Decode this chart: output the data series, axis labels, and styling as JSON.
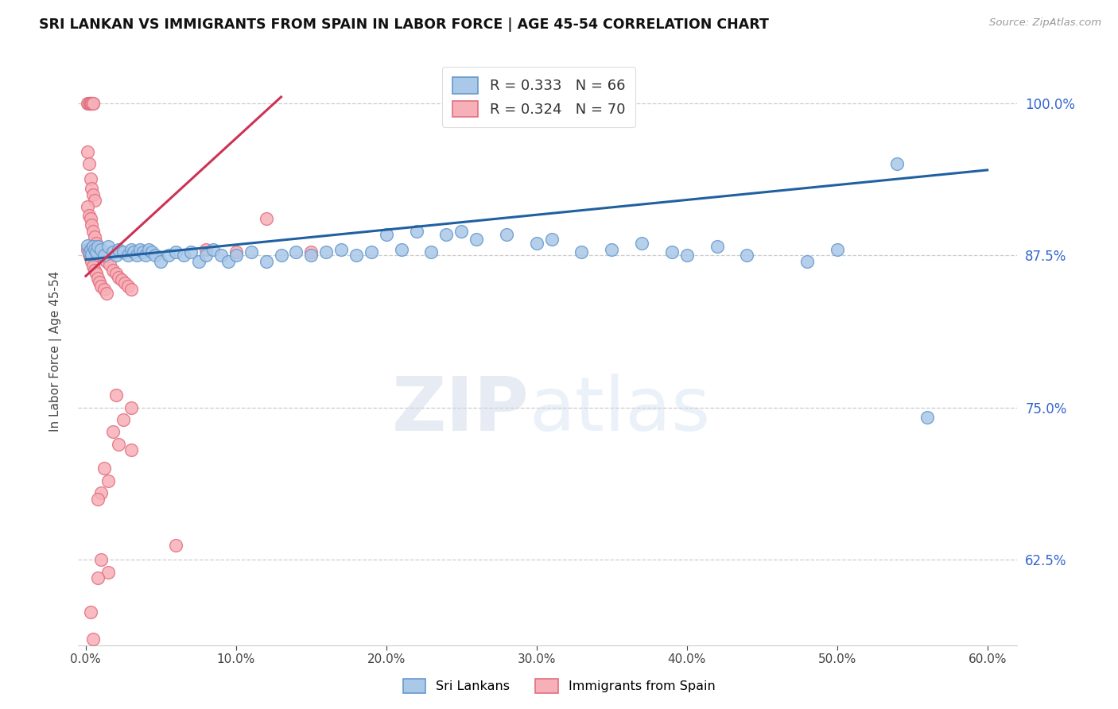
{
  "title": "SRI LANKAN VS IMMIGRANTS FROM SPAIN IN LABOR FORCE | AGE 45-54 CORRELATION CHART",
  "source": "Source: ZipAtlas.com",
  "ylabel_label": "In Labor Force | Age 45-54",
  "xlim": [
    -0.005,
    0.62
  ],
  "ylim": [
    0.555,
    1.038
  ],
  "ytick_vals": [
    0.625,
    0.75,
    0.875,
    1.0
  ],
  "ytick_labels": [
    "62.5%",
    "75.0%",
    "87.5%",
    "100.0%"
  ],
  "xtick_vals": [
    0.0,
    0.1,
    0.2,
    0.3,
    0.4,
    0.5,
    0.6
  ],
  "xtick_labels": [
    "0.0%",
    "10.0%",
    "20.0%",
    "30.0%",
    "40.0%",
    "50.0%",
    "60.0%"
  ],
  "blue_face": "#aac8e8",
  "blue_edge": "#6699cc",
  "pink_face": "#f8b0b8",
  "pink_edge": "#e07080",
  "trend_blue_color": "#2060a0",
  "trend_pink_color": "#cc3355",
  "blue_points": [
    [
      0.001,
      0.883
    ],
    [
      0.002,
      0.878
    ],
    [
      0.003,
      0.88
    ],
    [
      0.004,
      0.876
    ],
    [
      0.005,
      0.882
    ],
    [
      0.006,
      0.88
    ],
    [
      0.007,
      0.878
    ],
    [
      0.008,
      0.882
    ],
    [
      0.01,
      0.88
    ],
    [
      0.012,
      0.875
    ],
    [
      0.015,
      0.882
    ],
    [
      0.018,
      0.878
    ],
    [
      0.02,
      0.875
    ],
    [
      0.022,
      0.88
    ],
    [
      0.025,
      0.878
    ],
    [
      0.028,
      0.875
    ],
    [
      0.03,
      0.88
    ],
    [
      0.032,
      0.878
    ],
    [
      0.034,
      0.875
    ],
    [
      0.036,
      0.88
    ],
    [
      0.038,
      0.878
    ],
    [
      0.04,
      0.875
    ],
    [
      0.042,
      0.88
    ],
    [
      0.044,
      0.878
    ],
    [
      0.046,
      0.875
    ],
    [
      0.05,
      0.87
    ],
    [
      0.055,
      0.875
    ],
    [
      0.06,
      0.878
    ],
    [
      0.065,
      0.875
    ],
    [
      0.07,
      0.878
    ],
    [
      0.075,
      0.87
    ],
    [
      0.08,
      0.875
    ],
    [
      0.085,
      0.88
    ],
    [
      0.09,
      0.875
    ],
    [
      0.095,
      0.87
    ],
    [
      0.1,
      0.875
    ],
    [
      0.11,
      0.878
    ],
    [
      0.12,
      0.87
    ],
    [
      0.13,
      0.875
    ],
    [
      0.14,
      0.878
    ],
    [
      0.15,
      0.875
    ],
    [
      0.16,
      0.878
    ],
    [
      0.17,
      0.88
    ],
    [
      0.18,
      0.875
    ],
    [
      0.19,
      0.878
    ],
    [
      0.2,
      0.892
    ],
    [
      0.21,
      0.88
    ],
    [
      0.22,
      0.895
    ],
    [
      0.23,
      0.878
    ],
    [
      0.24,
      0.892
    ],
    [
      0.25,
      0.895
    ],
    [
      0.26,
      0.888
    ],
    [
      0.28,
      0.892
    ],
    [
      0.3,
      0.885
    ],
    [
      0.31,
      0.888
    ],
    [
      0.33,
      0.878
    ],
    [
      0.35,
      0.88
    ],
    [
      0.37,
      0.885
    ],
    [
      0.39,
      0.878
    ],
    [
      0.4,
      0.875
    ],
    [
      0.42,
      0.882
    ],
    [
      0.44,
      0.875
    ],
    [
      0.48,
      0.87
    ],
    [
      0.5,
      0.88
    ],
    [
      0.54,
      0.95
    ],
    [
      0.56,
      0.742
    ]
  ],
  "pink_points": [
    [
      0.001,
      1.0
    ],
    [
      0.002,
      1.0
    ],
    [
      0.002,
      1.0
    ],
    [
      0.003,
      1.0
    ],
    [
      0.003,
      1.0
    ],
    [
      0.004,
      1.0
    ],
    [
      0.004,
      1.0
    ],
    [
      0.005,
      1.0
    ],
    [
      0.005,
      1.0
    ],
    [
      0.001,
      0.96
    ],
    [
      0.002,
      0.95
    ],
    [
      0.003,
      0.938
    ],
    [
      0.004,
      0.93
    ],
    [
      0.005,
      0.925
    ],
    [
      0.006,
      0.92
    ],
    [
      0.001,
      0.915
    ],
    [
      0.002,
      0.908
    ],
    [
      0.003,
      0.905
    ],
    [
      0.004,
      0.9
    ],
    [
      0.005,
      0.895
    ],
    [
      0.006,
      0.89
    ],
    [
      0.007,
      0.885
    ],
    [
      0.008,
      0.882
    ],
    [
      0.009,
      0.878
    ],
    [
      0.01,
      0.875
    ],
    [
      0.012,
      0.872
    ],
    [
      0.014,
      0.87
    ],
    [
      0.016,
      0.867
    ],
    [
      0.018,
      0.863
    ],
    [
      0.02,
      0.86
    ],
    [
      0.022,
      0.857
    ],
    [
      0.024,
      0.855
    ],
    [
      0.026,
      0.852
    ],
    [
      0.028,
      0.85
    ],
    [
      0.03,
      0.847
    ],
    [
      0.001,
      0.88
    ],
    [
      0.002,
      0.876
    ],
    [
      0.003,
      0.873
    ],
    [
      0.004,
      0.87
    ],
    [
      0.005,
      0.866
    ],
    [
      0.006,
      0.863
    ],
    [
      0.007,
      0.86
    ],
    [
      0.008,
      0.856
    ],
    [
      0.009,
      0.853
    ],
    [
      0.01,
      0.85
    ],
    [
      0.012,
      0.847
    ],
    [
      0.014,
      0.844
    ],
    [
      0.02,
      0.76
    ],
    [
      0.03,
      0.75
    ],
    [
      0.025,
      0.74
    ],
    [
      0.018,
      0.73
    ],
    [
      0.022,
      0.72
    ],
    [
      0.03,
      0.715
    ],
    [
      0.012,
      0.7
    ],
    [
      0.015,
      0.69
    ],
    [
      0.01,
      0.68
    ],
    [
      0.008,
      0.675
    ],
    [
      0.06,
      0.637
    ],
    [
      0.01,
      0.625
    ],
    [
      0.015,
      0.615
    ],
    [
      0.008,
      0.61
    ],
    [
      0.003,
      0.582
    ],
    [
      0.005,
      0.56
    ],
    [
      0.1,
      0.878
    ],
    [
      0.15,
      0.878
    ],
    [
      0.08,
      0.88
    ],
    [
      0.12,
      0.905
    ]
  ]
}
